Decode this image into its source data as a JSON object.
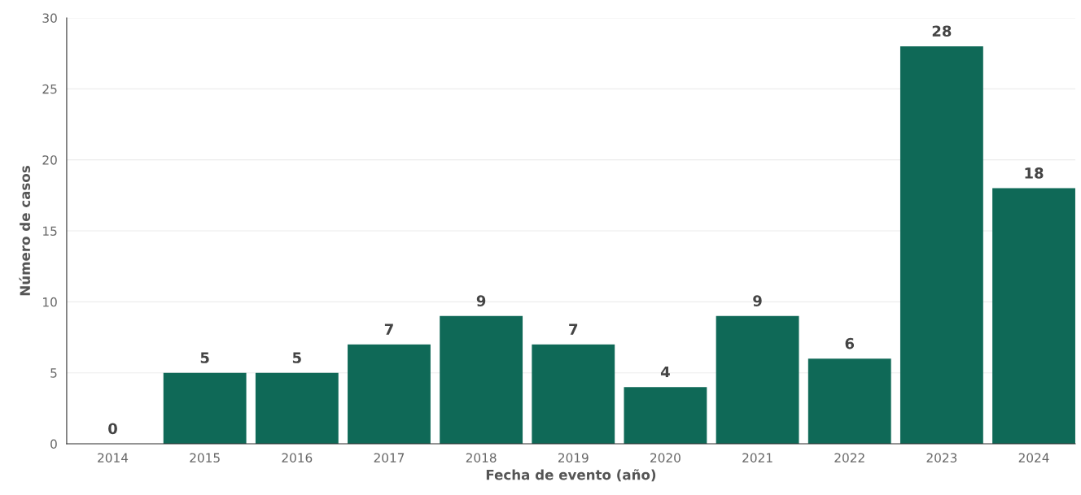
{
  "chart_data": {
    "type": "bar",
    "xlabel": "Fecha de evento (año)",
    "ylabel": "Número de casos",
    "categories": [
      "2014",
      "2015",
      "2016",
      "2017",
      "2018",
      "2019",
      "2020",
      "2021",
      "2022",
      "2023",
      "2024"
    ],
    "values": [
      0,
      5,
      5,
      7,
      9,
      7,
      4,
      9,
      6,
      28,
      18
    ],
    "color": "#0f6957",
    "ylim": [
      0,
      30
    ],
    "yticks": [
      0,
      5,
      10,
      15,
      20,
      25,
      30
    ],
    "grid": "y",
    "data_labels": true
  }
}
